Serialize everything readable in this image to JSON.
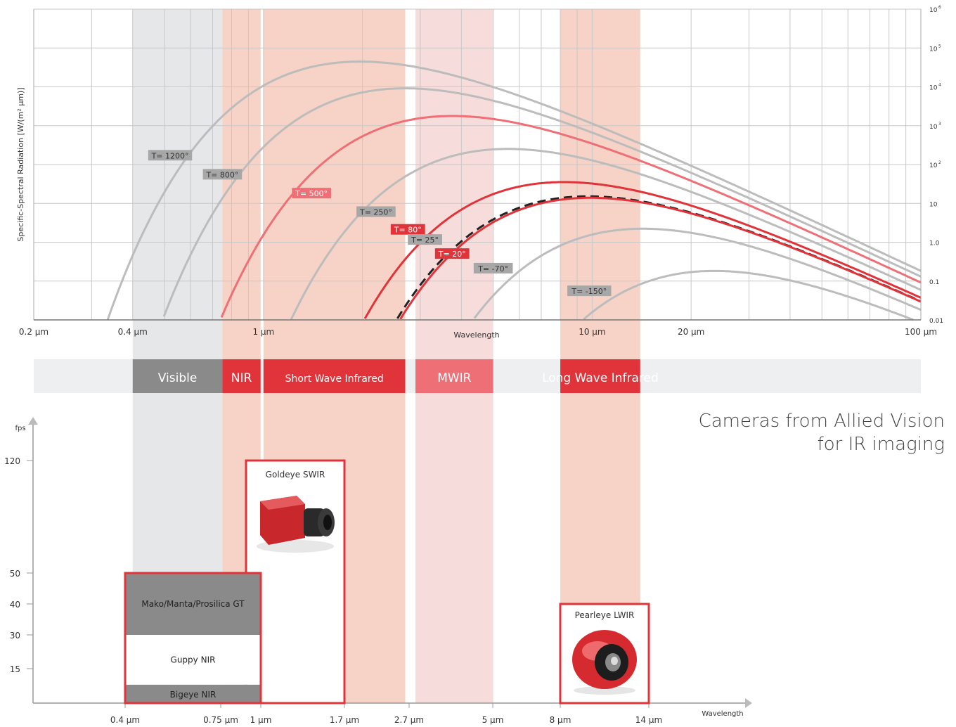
{
  "heading": {
    "line1": "Cameras from Allied Vision",
    "line2": "for IR imaging"
  },
  "colors": {
    "grid": "#c8c8c8",
    "visible_band": "#e6e7e9",
    "ir_band": "#f6d3c6",
    "mwir_band": "#f7dcdc",
    "bar_bg": "#eeeff1",
    "red": "#e0343a",
    "pink": "#ef6f76",
    "curve_gray": "#bcbcbc",
    "label_gray": "#a7a7a7",
    "dark_gray": "#8a8a8a"
  },
  "chart_data": [
    {
      "type": "line",
      "title": "",
      "xlabel": "Wavelength",
      "ylabel": "Specific-Spectral Radiation [W/(m² µm)]",
      "x_scale": "log",
      "y_scale": "log",
      "xlim": [
        0.2,
        100
      ],
      "ylim": [
        0.01,
        1000000
      ],
      "x_tick_labels": [
        "0.2 µm",
        "0.4 µm",
        "1 µm",
        "10 µm",
        "20 µm",
        "100 µm"
      ],
      "x_tick_values": [
        0.2,
        0.4,
        1,
        10,
        20,
        100
      ],
      "y_tick_labels": [
        {
          "base": "10",
          "exp": "6",
          "value": 1000000
        },
        {
          "base": "10",
          "exp": "5",
          "value": 100000
        },
        {
          "base": "10",
          "exp": "4",
          "value": 10000
        },
        {
          "base": "10",
          "exp": "3",
          "value": 1000
        },
        {
          "base": "10",
          "exp": "2",
          "value": 100
        },
        {
          "base": "10",
          "exp": "",
          "value": 10
        },
        {
          "base": "1.0",
          "exp": "",
          "value": 1
        },
        {
          "base": "0.1",
          "exp": "",
          "value": 0.1
        },
        {
          "base": "0.01",
          "exp": "",
          "value": 0.01
        }
      ],
      "bands": [
        {
          "from": 0.4,
          "to": 0.75,
          "kind": "visible"
        },
        {
          "from": 0.75,
          "to": 0.98,
          "kind": "ir"
        },
        {
          "from": 1.0,
          "to": 2.7,
          "kind": "ir"
        },
        {
          "from": 2.9,
          "to": 5.0,
          "kind": "mwir"
        },
        {
          "from": 8.0,
          "to": 14.0,
          "kind": "ir"
        }
      ],
      "series": [
        {
          "name": "T= 1200°",
          "temperature_c": 1200,
          "color": "gray",
          "dashed": false,
          "label_at": [
            0.52,
            170
          ]
        },
        {
          "name": "T= 800°",
          "temperature_c": 800,
          "color": "gray",
          "dashed": false,
          "label_at": [
            0.75,
            55
          ]
        },
        {
          "name": "T= 500°",
          "temperature_c": 500,
          "color": "pink",
          "dashed": false,
          "label_at": [
            1.4,
            18
          ]
        },
        {
          "name": "T= 250°",
          "temperature_c": 250,
          "color": "gray",
          "dashed": false,
          "label_at": [
            2.2,
            6
          ]
        },
        {
          "name": "T= 80°",
          "temperature_c": 80,
          "color": "red",
          "dashed": false,
          "label_at": [
            2.75,
            2.1
          ]
        },
        {
          "name": "T= 25°",
          "temperature_c": 25,
          "color": "black",
          "dashed": true,
          "label_at": [
            3.1,
            1.15
          ]
        },
        {
          "name": "T= 20°",
          "temperature_c": 20,
          "color": "red",
          "dashed": false,
          "label_at": [
            3.75,
            0.5
          ]
        },
        {
          "name": "T= -70°",
          "temperature_c": -70,
          "color": "gray",
          "dashed": false,
          "label_at": [
            5.0,
            0.21
          ]
        },
        {
          "name": "T= -150°",
          "temperature_c": -150,
          "color": "gray",
          "dashed": false,
          "label_at": [
            9.8,
            0.055
          ]
        }
      ]
    },
    {
      "type": "bar",
      "title": "",
      "xlabel": "Wavelength",
      "ylabel": "fps",
      "y_ticks": [
        15,
        30,
        40,
        50,
        120
      ],
      "x_tick_labels": [
        "0.4 µm",
        "0.75 µm",
        "1 µm",
        "1.7 µm",
        "2.7 µm",
        "5 µm",
        "8 µm",
        "14 µm"
      ],
      "spectrum_bands": [
        {
          "label": "Visible",
          "from": "0.4 µm",
          "to": "0.75 µm",
          "color": "gray"
        },
        {
          "label": "NIR",
          "from": "0.75 µm",
          "to": "1 µm",
          "color": "red"
        },
        {
          "label": "Short Wave Infrared",
          "from": "1 µm",
          "to": "2.7 µm",
          "color": "red"
        },
        {
          "label": "MWIR",
          "from": "2.7 µm",
          "to": "5 µm",
          "color": "pink"
        },
        {
          "label": "Long Wave Infrared",
          "from": "8 µm",
          "to": "14 µm",
          "color": "red"
        }
      ],
      "cameras": [
        {
          "name": "Goldeye SWIR",
          "from": "1 µm",
          "to": "1.7 µm",
          "fps": 120
        },
        {
          "name": "Mako/Manta/Prosilica GT",
          "from": "0.4 µm",
          "to": "1 µm",
          "fps": 50
        },
        {
          "name": "Guppy NIR",
          "from": "0.4 µm",
          "to": "1 µm",
          "fps": 30
        },
        {
          "name": "Bigeye NIR",
          "from": "0.4 µm",
          "to": "1 µm",
          "fps": 8
        },
        {
          "name": "Pearleye LWIR",
          "from": "8 µm",
          "to": "14 µm",
          "fps": 40
        }
      ]
    }
  ]
}
